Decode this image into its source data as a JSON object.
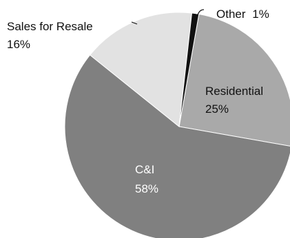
{
  "chart_data": {
    "type": "pie",
    "title": "",
    "slices": [
      {
        "label": "Residential",
        "value": 25,
        "value_label": "25%",
        "color": "#a9a9a9",
        "label_color": "#111111"
      },
      {
        "label": "C&I",
        "value": 58,
        "value_label": "58%",
        "color": "#808080",
        "label_color": "#ffffff"
      },
      {
        "label": "Sales for Resale",
        "value": 16,
        "value_label": "16%",
        "color": "#e2e2e2",
        "label_color": "#111111"
      },
      {
        "label": "Other",
        "value": 1,
        "value_label": "1%",
        "color": "#111111",
        "label_color": "#111111"
      }
    ],
    "start_angle_deg": 10,
    "direction": "clockwise",
    "legend": "none",
    "slice_border_color": "#ffffff"
  }
}
